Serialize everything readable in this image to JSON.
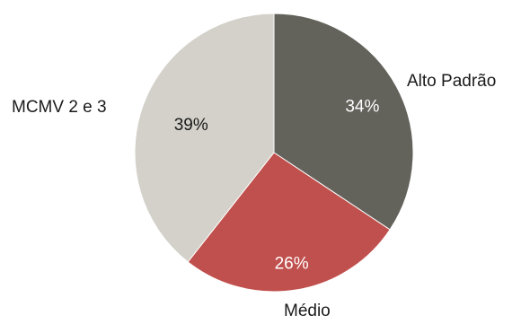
{
  "chart_data": {
    "type": "pie",
    "categories": [
      "Alto Padrão",
      "Médio",
      "MCMV 2 e 3"
    ],
    "values": [
      34,
      26,
      39
    ],
    "value_labels": [
      "34%",
      "26%",
      "39%"
    ],
    "colors": [
      "#63625b",
      "#c0504d",
      "#d3d1c9"
    ],
    "label_colors": [
      "#ffffff",
      "#ffffff",
      "#1a1a1a"
    ],
    "start_angle": "12 o'clock",
    "direction": "clockwise",
    "legend": "none"
  }
}
